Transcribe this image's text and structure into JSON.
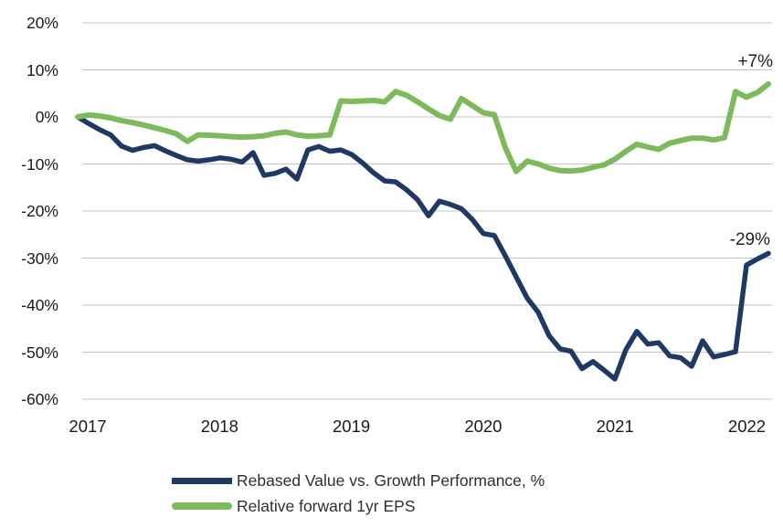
{
  "chart_data": {
    "type": "line",
    "title": "",
    "x_ticks": [
      "2017",
      "2018",
      "2019",
      "2020",
      "2021",
      "2022"
    ],
    "y_ticks": [
      "20%",
      "10%",
      "0%",
      "-10%",
      "-20%",
      "-30%",
      "-40%",
      "-50%",
      "-60%"
    ],
    "ylim": [
      -60,
      20
    ],
    "x_range_note": "monthly points, Dec 2016 - Feb 2022",
    "grid": "horizontal",
    "legend_position": "bottom",
    "series": [
      {
        "name": "Rebased Value vs. Growth Performance, %",
        "color": "#1F3864",
        "stroke_width": 5.5,
        "values": [
          0,
          -1.4,
          -2.7,
          -3.8,
          -6.2,
          -7.1,
          -6.5,
          -6.1,
          -7.2,
          -8.2,
          -9.1,
          -9.4,
          -9.1,
          -8.7,
          -9.0,
          -9.6,
          -7.6,
          -12.4,
          -12.0,
          -11.1,
          -13.2,
          -7.0,
          -6.3,
          -7.3,
          -7.0,
          -8.0,
          -9.8,
          -11.9,
          -13.6,
          -13.8,
          -15.5,
          -17.6,
          -21.0,
          -17.9,
          -18.6,
          -19.5,
          -21.8,
          -24.8,
          -25.2,
          -29.5,
          -34.0,
          -38.5,
          -41.5,
          -46.5,
          -49.3,
          -49.8,
          -53.5,
          -52.0,
          -53.8,
          -55.7,
          -49.5,
          -45.6,
          -48.3,
          -48.0,
          -50.8,
          -51.2,
          -53.0,
          -47.6,
          -51.0,
          -50.5,
          -49.9,
          -31.5,
          -30.2,
          -29.0
        ]
      },
      {
        "name": "Relative forward 1yr EPS",
        "color": "#7CBA5B",
        "stroke_width": 6,
        "values": [
          0,
          0.4,
          0.2,
          -0.2,
          -0.8,
          -1.2,
          -1.7,
          -2.3,
          -2.9,
          -3.6,
          -5.2,
          -3.8,
          -3.9,
          -4.0,
          -4.2,
          -4.3,
          -4.2,
          -4.0,
          -3.5,
          -3.2,
          -3.8,
          -4.1,
          -4.0,
          -3.8,
          3.4,
          3.3,
          3.4,
          3.5,
          3.2,
          5.4,
          4.6,
          3.2,
          1.7,
          0.3,
          -0.5,
          3.9,
          2.4,
          0.9,
          0.5,
          -6.5,
          -11.6,
          -9.4,
          -10.0,
          -10.9,
          -11.4,
          -11.5,
          -11.3,
          -10.7,
          -10.2,
          -9.0,
          -7.3,
          -5.8,
          -6.4,
          -6.9,
          -5.6,
          -5.0,
          -4.5,
          -4.5,
          -4.9,
          -4.4,
          5.4,
          4.2,
          5.2,
          7.0
        ]
      }
    ],
    "annotations": [
      {
        "text": "+7%",
        "series": "Relative forward 1yr EPS",
        "position": "end-of-line"
      },
      {
        "text": "-29%",
        "series": "Rebased Value vs. Growth Performance, %",
        "position": "end-of-line"
      }
    ]
  },
  "colors": {
    "gridline": "#C4C4C4",
    "axis_text": "#1a1a1a",
    "annotation_text": "#1f1f1f",
    "legend_text": "#2e2e2e",
    "background": "#ffffff"
  }
}
